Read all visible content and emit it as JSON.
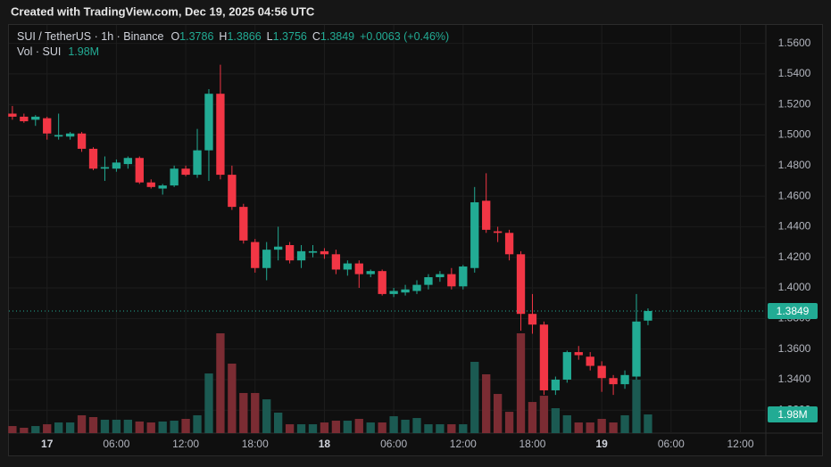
{
  "header": "Created with TradingView.com, Dec 19, 2025 04:56 UTC",
  "chart_data": {
    "type": "candlestick",
    "title": "SUI / TetherUS · 1h · Binance",
    "ohlc_labels": [
      "O",
      "H",
      "L",
      "C"
    ],
    "change": "+0.0063 (+0.46%)",
    "volume_title": "Vol · SUI",
    "x": [
      -3,
      -2,
      -1,
      0,
      1,
      2,
      3,
      4,
      5,
      6,
      7,
      8,
      9,
      10,
      11,
      12,
      13,
      14,
      15,
      16,
      17,
      18,
      19,
      20,
      21,
      22,
      23,
      24,
      25,
      26,
      27,
      28,
      29,
      30,
      31,
      32,
      33,
      34,
      35,
      36,
      37,
      38,
      39,
      40,
      41,
      42,
      43,
      44,
      45,
      46,
      47,
      48,
      49,
      50,
      51,
      52
    ],
    "open": [
      1.514,
      1.512,
      1.51,
      1.511,
      1.499,
      1.499,
      1.501,
      1.491,
      1.478,
      1.478,
      1.481,
      1.485,
      1.469,
      1.465,
      1.467,
      1.478,
      1.474,
      1.49,
      1.527,
      1.474,
      1.453,
      1.43,
      1.413,
      1.425,
      1.428,
      1.418,
      1.423,
      1.424,
      1.422,
      1.412,
      1.416,
      1.409,
      1.411,
      1.396,
      1.397,
      1.398,
      1.402,
      1.407,
      1.409,
      1.401,
      1.413,
      1.457,
      1.437,
      1.436,
      1.422,
      1.383,
      1.376,
      1.333,
      1.34,
      1.358,
      1.355,
      1.349,
      1.341,
      1.337,
      1.342,
      1.3786
    ],
    "high": [
      1.519,
      1.514,
      1.513,
      1.512,
      1.514,
      1.502,
      1.502,
      1.492,
      1.486,
      1.484,
      1.486,
      1.486,
      1.471,
      1.468,
      1.48,
      1.48,
      1.504,
      1.53,
      1.546,
      1.48,
      1.455,
      1.432,
      1.43,
      1.44,
      1.43,
      1.428,
      1.428,
      1.426,
      1.425,
      1.418,
      1.418,
      1.412,
      1.412,
      1.4,
      1.402,
      1.405,
      1.409,
      1.411,
      1.413,
      1.415,
      1.466,
      1.475,
      1.44,
      1.438,
      1.424,
      1.396,
      1.378,
      1.342,
      1.359,
      1.362,
      1.358,
      1.352,
      1.343,
      1.346,
      1.396,
      1.3866
    ],
    "low": [
      1.51,
      1.508,
      1.506,
      1.497,
      1.497,
      1.497,
      1.489,
      1.477,
      1.47,
      1.476,
      1.478,
      1.468,
      1.465,
      1.461,
      1.466,
      1.473,
      1.472,
      1.47,
      1.471,
      1.451,
      1.429,
      1.41,
      1.405,
      1.418,
      1.416,
      1.413,
      1.42,
      1.419,
      1.409,
      1.408,
      1.4,
      1.407,
      1.395,
      1.394,
      1.395,
      1.396,
      1.399,
      1.404,
      1.399,
      1.399,
      1.41,
      1.436,
      1.43,
      1.418,
      1.372,
      1.37,
      1.33,
      1.33,
      1.338,
      1.353,
      1.346,
      1.332,
      1.33,
      1.334,
      1.34,
      1.3756
    ],
    "close": [
      1.512,
      1.509,
      1.512,
      1.501,
      1.5,
      1.501,
      1.491,
      1.478,
      1.479,
      1.482,
      1.485,
      1.469,
      1.466,
      1.467,
      1.478,
      1.474,
      1.49,
      1.527,
      1.474,
      1.453,
      1.431,
      1.413,
      1.425,
      1.427,
      1.418,
      1.424,
      1.424,
      1.422,
      1.412,
      1.416,
      1.409,
      1.411,
      1.396,
      1.398,
      1.399,
      1.402,
      1.407,
      1.409,
      1.401,
      1.414,
      1.456,
      1.438,
      1.436,
      1.422,
      1.383,
      1.376,
      1.333,
      1.34,
      1.358,
      1.356,
      1.349,
      1.341,
      1.337,
      1.343,
      1.378,
      1.3849
    ],
    "volume": [
      750000,
      570000,
      750000,
      940000,
      1130000,
      1130000,
      1890000,
      1700000,
      1420000,
      1420000,
      1420000,
      1230000,
      1130000,
      1230000,
      1320000,
      1510000,
      1890000,
      6320000,
      10570000,
      7360000,
      4250000,
      4250000,
      3580000,
      2170000,
      940000,
      940000,
      940000,
      1130000,
      1320000,
      1320000,
      1510000,
      1130000,
      1130000,
      1790000,
      1420000,
      1600000,
      940000,
      940000,
      940000,
      940000,
      7550000,
      6230000,
      4150000,
      2260000,
      10570000,
      3300000,
      3960000,
      2640000,
      1890000,
      1130000,
      1130000,
      1510000,
      1130000,
      1890000,
      5660000,
      1980000
    ],
    "volume_labels": [
      null,
      null,
      null,
      null,
      null,
      null,
      null,
      null,
      null,
      null,
      null,
      null,
      null,
      null,
      null,
      null,
      null,
      null,
      null,
      null,
      null,
      null,
      null,
      null,
      null,
      null,
      null,
      null,
      null,
      null,
      null,
      null,
      null,
      null,
      null,
      null,
      null,
      null,
      null,
      null,
      null,
      null,
      null,
      null,
      null,
      null,
      null,
      null,
      null,
      null,
      null,
      null,
      null,
      null,
      null,
      "1.98M"
    ],
    "colors": {
      "up": "#22ab94",
      "down": "#f23645",
      "volume_up": "#1b5a52",
      "volume_down": "#7b2c33"
    },
    "xlim": [
      -3.3,
      62.2
    ],
    "xticks": [
      {
        "value": 0,
        "label": "17"
      },
      {
        "value": 6,
        "label": "06:00"
      },
      {
        "value": 12,
        "label": "12:00"
      },
      {
        "value": 18,
        "label": "18:00"
      },
      {
        "value": 24,
        "label": "18"
      },
      {
        "value": 30,
        "label": "06:00"
      },
      {
        "value": 36,
        "label": "12:00"
      },
      {
        "value": 42,
        "label": "18:00"
      },
      {
        "value": 48,
        "label": "19"
      },
      {
        "value": 54,
        "label": "06:00"
      },
      {
        "value": 60,
        "label": "12:00"
      }
    ],
    "ylim": [
      1.305,
      1.572
    ],
    "yticks": [
      {
        "value": 1.32,
        "label": "1.3200"
      },
      {
        "value": 1.34,
        "label": "1.3400"
      },
      {
        "value": 1.36,
        "label": "1.3600"
      },
      {
        "value": 1.38,
        "label": "1.3800"
      },
      {
        "value": 1.4,
        "label": "1.4000"
      },
      {
        "value": 1.42,
        "label": "1.4200"
      },
      {
        "value": 1.44,
        "label": "1.4400"
      },
      {
        "value": 1.46,
        "label": "1.4600"
      },
      {
        "value": 1.48,
        "label": "1.4800"
      },
      {
        "value": 1.5,
        "label": "1.5000"
      },
      {
        "value": 1.52,
        "label": "1.5200"
      },
      {
        "value": 1.54,
        "label": "1.5400"
      },
      {
        "value": 1.56,
        "label": "1.5600"
      }
    ],
    "grid": true
  }
}
